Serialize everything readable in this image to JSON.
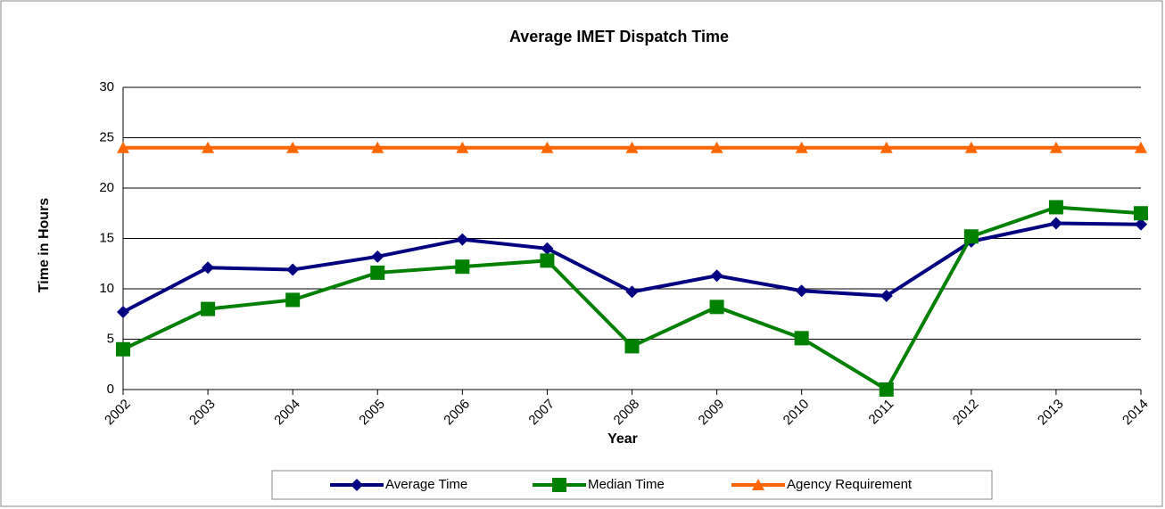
{
  "chart_data": {
    "type": "line",
    "title": "Average IMET Dispatch Time",
    "x_label": "Year",
    "y_label": "Time in Hours",
    "categories": [
      "2002",
      "2003",
      "2004",
      "2005",
      "2006",
      "2007",
      "2008",
      "2009",
      "2010",
      "2011",
      "2012",
      "2013",
      "2014"
    ],
    "series": [
      {
        "name": "Average Time",
        "color": "#000080",
        "marker": "diamond",
        "values": [
          7.7,
          12.1,
          11.9,
          13.2,
          14.9,
          14.0,
          9.7,
          11.3,
          9.8,
          9.3,
          14.7,
          16.5,
          16.4
        ]
      },
      {
        "name": "Median Time",
        "color": "#008000",
        "marker": "square",
        "values": [
          4.0,
          8.0,
          8.9,
          11.6,
          12.2,
          12.8,
          4.3,
          8.2,
          5.1,
          0,
          15.2,
          18.1,
          17.5
        ]
      },
      {
        "name": "Agency Requirement",
        "color": "#ff6600",
        "marker": "triangle",
        "values": [
          24,
          24,
          24,
          24,
          24,
          24,
          24,
          24,
          24,
          24,
          24,
          24,
          24
        ]
      }
    ],
    "ylim": [
      0,
      30
    ],
    "yticks": [
      0,
      5,
      10,
      15,
      20,
      25,
      30
    ],
    "grid": true,
    "legend": "bottom"
  }
}
